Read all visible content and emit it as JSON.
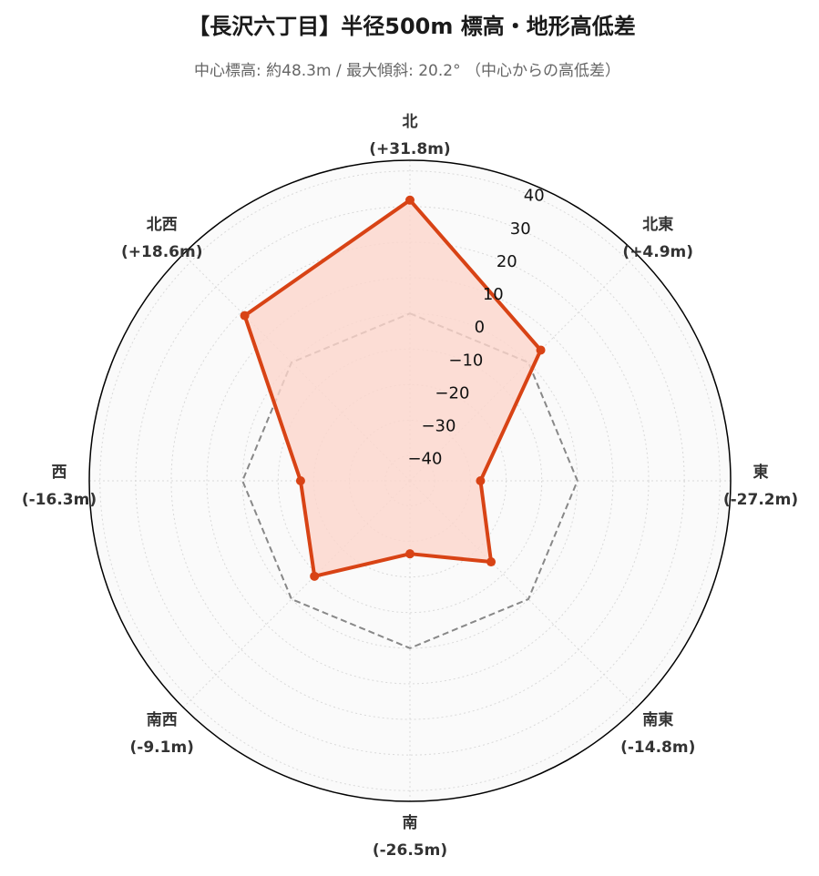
{
  "header": {
    "title": "【長沢六丁目】半径500m 標高・地形高低差",
    "subtitle": "中心標高: 約48.3m / 最大傾斜: 20.2° （中心からの高低差）"
  },
  "chart_data": {
    "type": "radar",
    "title": "【長沢六丁目】半径500m 標高・地形高低差",
    "subtitle": "中心標高: 約48.3m / 最大傾斜: 20.2° （中心からの高低差）",
    "categories": [
      "北",
      "北東",
      "東",
      "南東",
      "南",
      "南西",
      "西",
      "北西"
    ],
    "value_labels": [
      "(+31.8m)",
      "(+4.9m)",
      "(-27.2m)",
      "(-14.8m)",
      "(-26.5m)",
      "(-9.1m)",
      "(-16.3m)",
      "(+18.6m)"
    ],
    "series": [
      {
        "values": [
          31.8,
          4.9,
          -27.2,
          -14.8,
          -26.5,
          -9.1,
          -16.3,
          18.6
        ]
      }
    ],
    "reference_line": {
      "value": 0,
      "style": "dashed"
    },
    "rlim": [
      -47,
      43
    ],
    "rticks": [
      40,
      30,
      20,
      10,
      0,
      -10,
      -20,
      -30,
      -40
    ],
    "grid": true,
    "colors": {
      "series_line": "#d84315",
      "series_fill": "#fcd6cc",
      "reference": "#888888",
      "background": "#fafafa",
      "grid": "#d9d9d9"
    }
  }
}
